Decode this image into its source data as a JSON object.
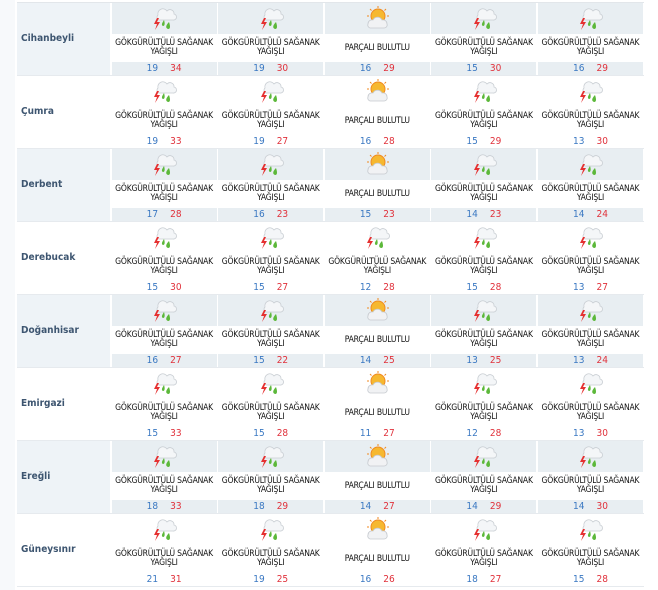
{
  "colors": {
    "min_temp": "#3a78c2",
    "max_temp": "#e0313b",
    "alt_row_bg": "#e8eef2"
  },
  "conditions": {
    "storm": {
      "label": "GÖKGÜRÜLTÜLÜ SAĞANAK YAĞIŞLI",
      "icon": "thunderstorm-rain-icon"
    },
    "partly": {
      "label": "PARÇALI BULUTLU",
      "icon": "partly-cloudy-icon"
    }
  },
  "rows": [
    {
      "name": "Cihanbeyli",
      "days": [
        {
          "c": "storm",
          "lo": "19",
          "hi": "34"
        },
        {
          "c": "storm",
          "lo": "19",
          "hi": "30"
        },
        {
          "c": "partly",
          "lo": "16",
          "hi": "29"
        },
        {
          "c": "storm",
          "lo": "15",
          "hi": "30"
        },
        {
          "c": "storm",
          "lo": "16",
          "hi": "29"
        }
      ]
    },
    {
      "name": "Çumra",
      "days": [
        {
          "c": "storm",
          "lo": "19",
          "hi": "33"
        },
        {
          "c": "storm",
          "lo": "19",
          "hi": "27"
        },
        {
          "c": "partly",
          "lo": "16",
          "hi": "28"
        },
        {
          "c": "storm",
          "lo": "15",
          "hi": "29"
        },
        {
          "c": "storm",
          "lo": "13",
          "hi": "30"
        }
      ]
    },
    {
      "name": "Derbent",
      "days": [
        {
          "c": "storm",
          "lo": "17",
          "hi": "28"
        },
        {
          "c": "storm",
          "lo": "16",
          "hi": "23"
        },
        {
          "c": "partly",
          "lo": "15",
          "hi": "23"
        },
        {
          "c": "storm",
          "lo": "14",
          "hi": "23"
        },
        {
          "c": "storm",
          "lo": "14",
          "hi": "24"
        }
      ]
    },
    {
      "name": "Derebucak",
      "days": [
        {
          "c": "storm",
          "lo": "15",
          "hi": "30"
        },
        {
          "c": "storm",
          "lo": "15",
          "hi": "27"
        },
        {
          "c": "storm",
          "lo": "12",
          "hi": "28"
        },
        {
          "c": "storm",
          "lo": "15",
          "hi": "28"
        },
        {
          "c": "storm",
          "lo": "13",
          "hi": "27"
        }
      ]
    },
    {
      "name": "Doğanhisar",
      "days": [
        {
          "c": "storm",
          "lo": "16",
          "hi": "27"
        },
        {
          "c": "storm",
          "lo": "15",
          "hi": "22"
        },
        {
          "c": "partly",
          "lo": "14",
          "hi": "25"
        },
        {
          "c": "storm",
          "lo": "13",
          "hi": "25"
        },
        {
          "c": "storm",
          "lo": "13",
          "hi": "24"
        }
      ]
    },
    {
      "name": "Emirgazi",
      "days": [
        {
          "c": "storm",
          "lo": "15",
          "hi": "33"
        },
        {
          "c": "storm",
          "lo": "15",
          "hi": "28"
        },
        {
          "c": "partly",
          "lo": "11",
          "hi": "27"
        },
        {
          "c": "storm",
          "lo": "12",
          "hi": "28"
        },
        {
          "c": "storm",
          "lo": "13",
          "hi": "30"
        }
      ]
    },
    {
      "name": "Ereğli",
      "days": [
        {
          "c": "storm",
          "lo": "18",
          "hi": "33"
        },
        {
          "c": "storm",
          "lo": "18",
          "hi": "29"
        },
        {
          "c": "partly",
          "lo": "14",
          "hi": "27"
        },
        {
          "c": "storm",
          "lo": "14",
          "hi": "29"
        },
        {
          "c": "storm",
          "lo": "14",
          "hi": "30"
        }
      ]
    },
    {
      "name": "Güneysınır",
      "days": [
        {
          "c": "storm",
          "lo": "21",
          "hi": "31"
        },
        {
          "c": "storm",
          "lo": "19",
          "hi": "25"
        },
        {
          "c": "partly",
          "lo": "16",
          "hi": "26"
        },
        {
          "c": "storm",
          "lo": "18",
          "hi": "27"
        },
        {
          "c": "storm",
          "lo": "15",
          "hi": "28"
        }
      ]
    }
  ]
}
